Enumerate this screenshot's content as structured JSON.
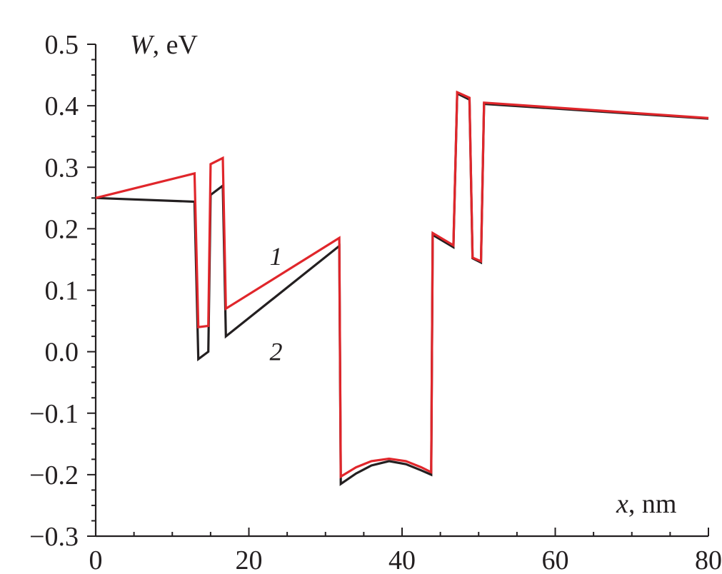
{
  "chart_data": {
    "type": "line",
    "xlim": [
      0,
      80
    ],
    "ylim": [
      -0.3,
      0.5
    ],
    "x_ticks": [
      "0",
      "20",
      "40",
      "60",
      "80"
    ],
    "y_ticks": [
      "0.5",
      "0.4",
      "0.3",
      "0.2",
      "0.1",
      "0.0",
      "−0.1",
      "−0.2",
      "−0.3"
    ],
    "x_tick_values": [
      0,
      20,
      40,
      60,
      80
    ],
    "y_tick_values": [
      0.5,
      0.4,
      0.3,
      0.2,
      0.1,
      0.0,
      -0.1,
      -0.2,
      -0.3
    ],
    "xlabel_var": "x",
    "xlabel_unit": ", nm",
    "ylabel_var": "W",
    "ylabel_unit": ", eV",
    "grid": false,
    "series": [
      {
        "name": "1",
        "color": "#e0262b",
        "points": [
          [
            0,
            0.25
          ],
          [
            12.9,
            0.29
          ],
          [
            13.4,
            0.04
          ],
          [
            14.7,
            0.042
          ],
          [
            15.0,
            0.305
          ],
          [
            16.6,
            0.315
          ],
          [
            17.0,
            0.07
          ],
          [
            31.8,
            0.185
          ],
          [
            32.0,
            -0.203
          ],
          [
            34,
            -0.188
          ],
          [
            36,
            -0.178
          ],
          [
            38.3,
            -0.174
          ],
          [
            40.5,
            -0.178
          ],
          [
            42.5,
            -0.188
          ],
          [
            43.8,
            -0.196
          ],
          [
            44.0,
            0.193
          ],
          [
            46.7,
            0.173
          ],
          [
            47.2,
            0.422
          ],
          [
            48.8,
            0.413
          ],
          [
            49.2,
            0.153
          ],
          [
            50.3,
            0.147
          ],
          [
            50.7,
            0.405
          ],
          [
            80,
            0.38
          ]
        ]
      },
      {
        "name": "2",
        "color": "#231f20",
        "points": [
          [
            0,
            0.25
          ],
          [
            12.9,
            0.244
          ],
          [
            13.4,
            -0.012
          ],
          [
            14.7,
            0.0
          ],
          [
            15.0,
            0.255
          ],
          [
            16.6,
            0.27
          ],
          [
            17.0,
            0.025
          ],
          [
            31.8,
            0.172
          ],
          [
            32.0,
            -0.215
          ],
          [
            34,
            -0.198
          ],
          [
            36,
            -0.185
          ],
          [
            38.3,
            -0.178
          ],
          [
            40.5,
            -0.183
          ],
          [
            42.5,
            -0.193
          ],
          [
            43.8,
            -0.2
          ],
          [
            44.0,
            0.19
          ],
          [
            46.7,
            0.17
          ],
          [
            47.2,
            0.42
          ],
          [
            48.8,
            0.41
          ],
          [
            49.2,
            0.152
          ],
          [
            50.3,
            0.145
          ],
          [
            50.7,
            0.403
          ],
          [
            80,
            0.379
          ]
        ]
      }
    ],
    "annotations": [
      {
        "text": "1",
        "x": 22.7,
        "y": 0.155
      },
      {
        "text": "2",
        "x": 22.7,
        "y": 0.0
      }
    ]
  }
}
